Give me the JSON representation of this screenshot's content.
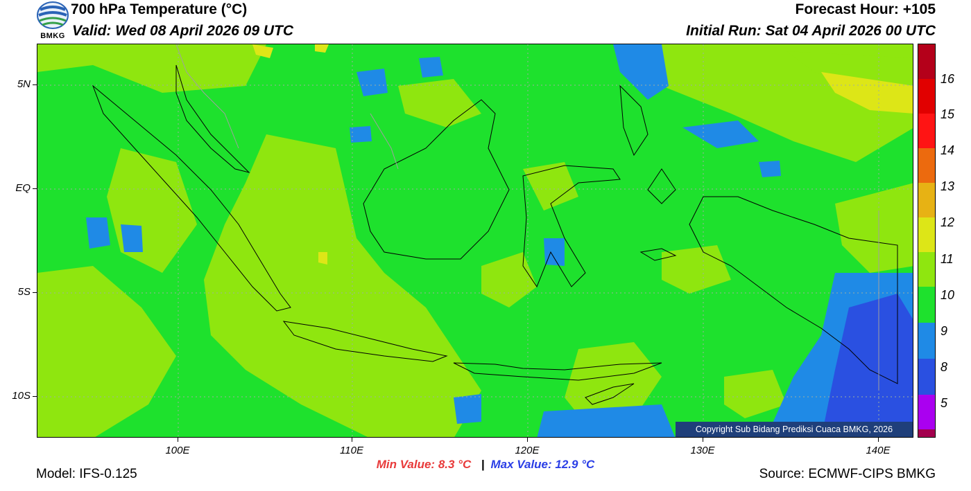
{
  "header": {
    "title": "700 hPa Temperature (°C)",
    "valid": "Valid: Wed 08 April 2026 09 UTC",
    "forecast_hour": "Forecast Hour: +105",
    "initial_run": "Initial Run: Sat 04 April 2026 00 UTC"
  },
  "logo": {
    "text": "BMKG",
    "icon": "bmkg-logo-icon"
  },
  "map": {
    "lon_range": [
      92,
      142.5
    ],
    "lat_range": [
      -12,
      7
    ],
    "lat_labels": [
      "5N",
      "EQ",
      "5S",
      "10S"
    ],
    "lat_values": [
      5,
      0,
      -5,
      -10
    ],
    "lon_labels": [
      "100E",
      "110E",
      "120E",
      "130E",
      "140E"
    ],
    "lon_values": [
      100,
      110,
      120,
      130,
      140
    ],
    "background_color": "#1ee12d"
  },
  "colorbar": {
    "labels": [
      "16",
      "15",
      "14",
      "13",
      "12",
      "11",
      "10",
      "9",
      "8",
      "5"
    ],
    "colors": [
      "#b4001a",
      "#e10000",
      "#ff1414",
      "#ec6a0e",
      "#e7b214",
      "#dde617",
      "#8fe60f",
      "#1ee12d",
      "#1f8ae6",
      "#2a50e1",
      "#aa00f0",
      "#a3004e"
    ]
  },
  "copyright": "Copyright Sub Bidang Prediksi Cuaca BMKG, 2026",
  "stats": {
    "min_text": "Min Value: 8.3 °C",
    "separator": "|",
    "max_text": "Max Value: 12.9 °C",
    "min_color": "#e83a3a",
    "max_color": "#2a3ee6"
  },
  "footer": {
    "model": "Model: IFS-0.125",
    "source": "Source: ECMWF-CIPS BMKG"
  }
}
